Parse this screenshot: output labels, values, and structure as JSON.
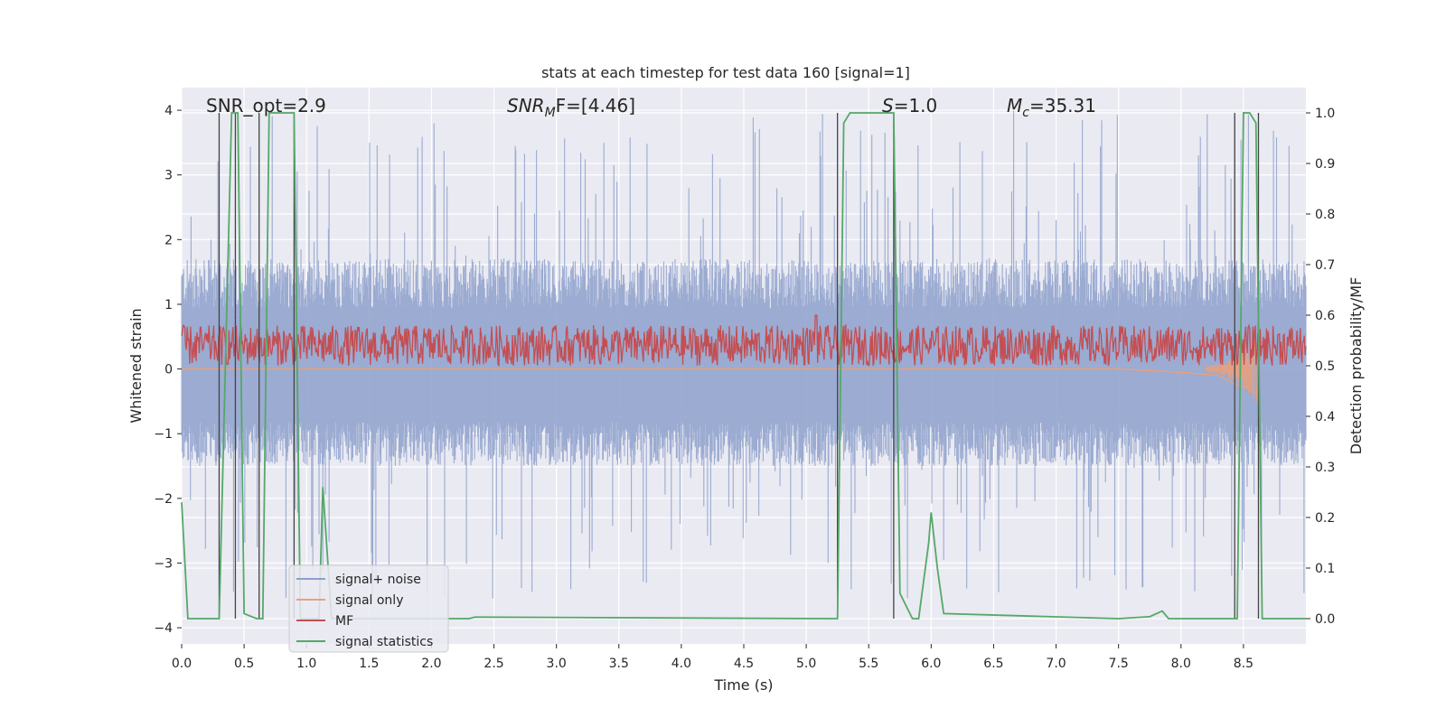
{
  "chart_data": {
    "type": "line",
    "title": "stats at each timestep for test data 160 [signal=1]",
    "xlabel": "Time (s)",
    "ylabel": "Whitened strain",
    "y2label": "Detection probability/MF",
    "xlim": [
      0.0,
      9.0
    ],
    "ylim": [
      -4.25,
      4.35
    ],
    "y2lim": [
      -0.05,
      1.05
    ],
    "xticks": [
      "0.0",
      "0.5",
      "1.0",
      "1.5",
      "2.0",
      "2.5",
      "3.0",
      "3.5",
      "4.0",
      "4.5",
      "5.0",
      "5.5",
      "6.0",
      "6.5",
      "7.0",
      "7.5",
      "8.0",
      "8.5"
    ],
    "yticks": [
      "4",
      "3",
      "2",
      "1",
      "0",
      "−1",
      "−2",
      "−3",
      "−4"
    ],
    "y2ticks": [
      "1.0",
      "0.9",
      "0.8",
      "0.7",
      "0.6",
      "0.5",
      "0.4",
      "0.3",
      "0.2",
      "0.1",
      "0.0"
    ],
    "grid": true,
    "legend_position": "lower-left",
    "annotations": {
      "snr_opt": "SNR_opt=2.9",
      "snr_mf_main": "SNR",
      "snr_mf_sub": "M",
      "snr_mf_rest": "F=[4.46]",
      "s_main": "S",
      "s_rest": "=1.0",
      "mc_main": "M",
      "mc_sub": "c",
      "mc_rest": "=35.31"
    },
    "series": [
      {
        "name": "signal+ noise",
        "color": "#8da0cb",
        "note": "noise band; typical amplitude range",
        "envelope": {
          "x": [
            0.0,
            9.0
          ],
          "low_typ": -1.5,
          "high_typ": 1.7,
          "peaks_high": 4.0,
          "peaks_low": -3.6
        }
      },
      {
        "name": "signal only",
        "color": "#e9a07c",
        "x": [
          0.0,
          7.5,
          8.0,
          8.3,
          8.45,
          8.55,
          8.62
        ],
        "y": [
          0.0,
          0.0,
          -0.05,
          -0.1,
          -0.25,
          -0.3,
          -0.4
        ]
      },
      {
        "name": "MF",
        "color": "#c44e52",
        "note": "fluctuates on right axis",
        "range": {
          "x": [
            0.0,
            9.0
          ],
          "low": 0.5,
          "high": 0.58,
          "peak_x": 5.08,
          "peak": 0.6
        }
      },
      {
        "name": "signal statistics",
        "color": "#55a868",
        "axis": "right",
        "x": [
          0.0,
          0.05,
          0.3,
          0.4,
          0.45,
          0.5,
          0.6,
          0.65,
          0.7,
          0.9,
          0.95,
          1.1,
          1.13,
          1.2,
          1.3,
          2.3,
          2.35,
          5.25,
          5.3,
          5.35,
          5.7,
          5.75,
          5.85,
          5.9,
          5.98,
          6.0,
          6.05,
          6.1,
          7.5,
          7.75,
          7.85,
          7.9,
          8.0,
          8.45,
          8.5,
          8.55,
          8.6,
          8.65,
          8.9,
          9.0
        ],
        "y": [
          0.23,
          0.0,
          0.0,
          1.0,
          1.0,
          0.01,
          0.0,
          0.0,
          1.0,
          1.0,
          0.0,
          0.0,
          0.26,
          0.0,
          0.0,
          0.0,
          0.003,
          0.0,
          0.98,
          1.0,
          1.0,
          0.05,
          0.0,
          0.0,
          0.15,
          0.21,
          0.1,
          0.01,
          0.0,
          0.004,
          0.015,
          0.0,
          0.0,
          0.0,
          1.0,
          1.0,
          0.98,
          0.0,
          0.0,
          0.0
        ]
      }
    ],
    "vlines": [
      0.3,
      0.43,
      0.62,
      0.9,
      5.25,
      5.7,
      8.43,
      8.62
    ]
  },
  "colors": {
    "plot_bg": "#eaeaf2",
    "grid": "#ffffff",
    "vline": "#444444"
  }
}
